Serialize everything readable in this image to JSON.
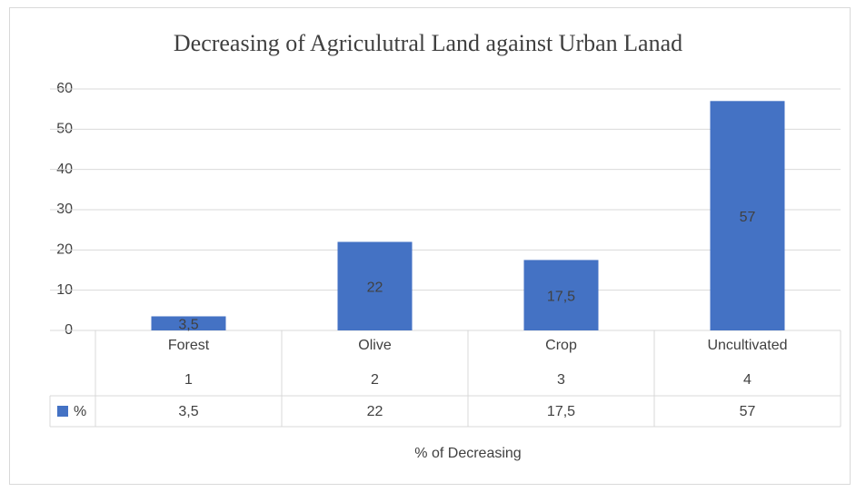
{
  "chart_data": {
    "type": "bar",
    "title": "Decreasing of Agriculutral Land against Urban Lanad",
    "categories": [
      "Forest",
      "Olive",
      "Crop",
      "Uncultivated"
    ],
    "subcategories": [
      "1",
      "2",
      "3",
      "4"
    ],
    "series": [
      {
        "name": "%",
        "color": "#4472c4",
        "values": [
          3.5,
          22,
          17.5,
          57
        ],
        "value_labels": [
          "3,5",
          "22",
          "17,5",
          "57"
        ]
      }
    ],
    "xlabel": "% of Decreasing",
    "ylim": [
      0,
      60
    ],
    "yticks": [
      0,
      10,
      20,
      30,
      40,
      50,
      60
    ],
    "grid": true
  }
}
